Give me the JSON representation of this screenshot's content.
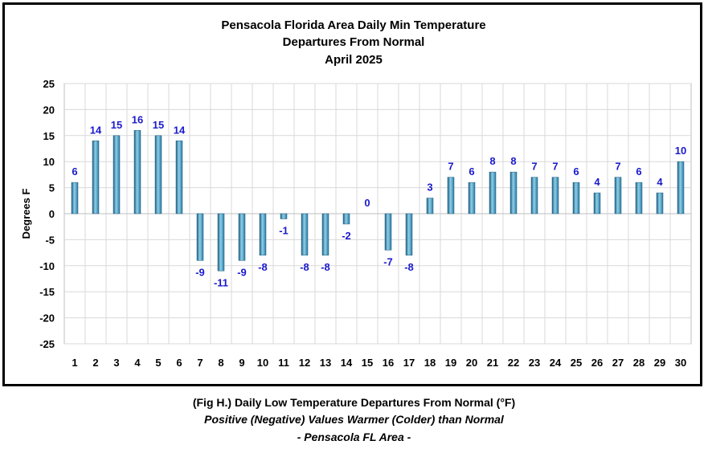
{
  "chart_data": {
    "type": "bar",
    "title_lines": [
      "Pensacola Florida Area Daily Min Temperature",
      "Departures From Normal",
      "April 2025"
    ],
    "xlabel": "",
    "ylabel": "Degrees F",
    "ylim": [
      -25,
      25
    ],
    "yticks": [
      25,
      20,
      15,
      10,
      5,
      0,
      -5,
      -10,
      -15,
      -20,
      -25
    ],
    "grid": true,
    "categories": [
      "1",
      "2",
      "3",
      "4",
      "5",
      "6",
      "7",
      "8",
      "9",
      "10",
      "11",
      "12",
      "13",
      "14",
      "15",
      "16",
      "17",
      "18",
      "19",
      "20",
      "21",
      "22",
      "23",
      "24",
      "25",
      "26",
      "27",
      "28",
      "29",
      "30"
    ],
    "values": [
      6,
      14,
      15,
      16,
      15,
      14,
      -9,
      -11,
      -9,
      -8,
      -1,
      -8,
      -8,
      -2,
      0,
      -7,
      -8,
      3,
      7,
      6,
      8,
      8,
      7,
      7,
      6,
      4,
      7,
      6,
      4,
      10
    ],
    "bar_color": "#3d8fb5",
    "label_color": "#1a1acc"
  },
  "caption": {
    "line1": "(Fig H.) Daily Low Temperature Departures From Normal (°F)",
    "line2": "Positive (Negative) Values Warmer (Colder) than Normal",
    "line3": "- Pensacola FL Area -"
  }
}
